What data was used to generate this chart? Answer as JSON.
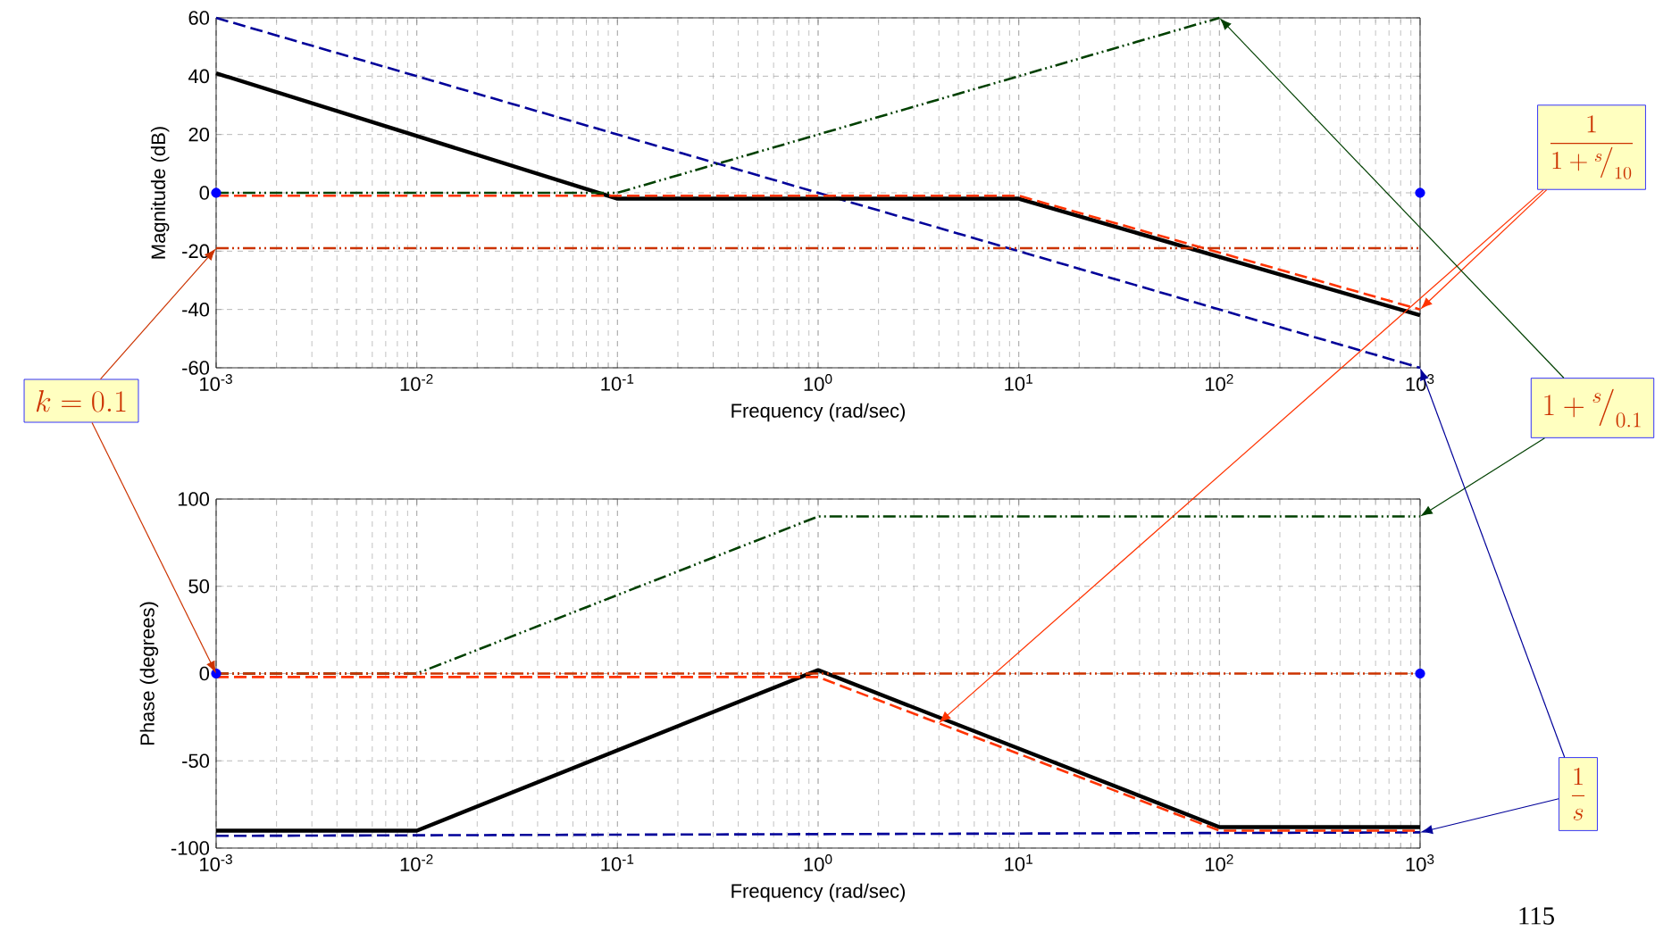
{
  "chart_data": [
    {
      "type": "line",
      "log": "x",
      "grid": true,
      "xlabel": "Frequency (rad/sec)",
      "ylabel": "Magnitude (dB)",
      "xlim": [
        0.001,
        1000
      ],
      "ylim": [
        -60,
        60
      ],
      "xticks": [
        {
          "value": 0.001,
          "label": "10$^{-3}$"
        },
        {
          "value": 0.01,
          "label": "10$^{-2}$"
        },
        {
          "value": 0.1,
          "label": "10$^{-1}$"
        },
        {
          "value": 1,
          "label": "10$^{0}$"
        },
        {
          "value": 10,
          "label": "10$^{1}$"
        },
        {
          "value": 100,
          "label": "10$^{2}$"
        },
        {
          "value": 1000,
          "label": "10$^{3}$"
        }
      ],
      "yticks": [
        -60,
        -40,
        -20,
        0,
        20,
        40,
        60
      ],
      "series": [
        {
          "color": "#000099",
          "line_style": "dashed",
          "x": [
            0.001,
            1000
          ],
          "values": [
            60,
            -60
          ]
        },
        {
          "color": "#000000",
          "line_style": "solid",
          "x": [
            0.001,
            0.1,
            10,
            1000
          ],
          "values": [
            41,
            -2,
            -2,
            -42
          ]
        },
        {
          "color": "#ff3300",
          "line_style": "dashed",
          "x": [
            0.001,
            10,
            1000
          ],
          "values": [
            -1,
            -1,
            -40
          ]
        },
        {
          "color": "#004000",
          "line_style": "dashdot",
          "x": [
            0.001,
            0.1,
            100
          ],
          "values": [
            0,
            0,
            60
          ]
        },
        {
          "color": "#cc3300",
          "line_style": "dashdot",
          "x": [
            0.001,
            1000
          ],
          "values": [
            -19,
            -19
          ]
        },
        {
          "type": "scatter",
          "color": "#0000ff",
          "x": [
            0.001,
            1000
          ],
          "values": [
            0,
            0
          ]
        }
      ],
      "annotations": [
        "k=0.1",
        "\\dfrac{1}{1+{}^{s}\\!\\big/_{10}}",
        "1+{}^{s}\\!\\big/_{0.1}",
        "\\dfrac{1}{s}"
      ]
    },
    {
      "type": "line",
      "log": "x",
      "grid": true,
      "xlabel": "Frequency (rad/sec)",
      "ylabel": "Phase (degrees)",
      "xlim": [
        0.001,
        1000
      ],
      "ylim": [
        -100,
        100
      ],
      "xticks": [
        {
          "value": 0.001,
          "label": "10$^{-3}$"
        },
        {
          "value": 0.01,
          "label": "10$^{-2}$"
        },
        {
          "value": 0.1,
          "label": "10$^{-1}$"
        },
        {
          "value": 1,
          "label": "10$^{0}$"
        },
        {
          "value": 10,
          "label": "10$^{1}$"
        },
        {
          "value": 100,
          "label": "10$^{2}$"
        },
        {
          "value": 1000,
          "label": "10$^{3}$"
        }
      ],
      "yticks": [
        -100,
        -50,
        0,
        50,
        100
      ],
      "series": [
        {
          "color": "#000099",
          "line_style": "dashed",
          "x": [
            0.001,
            1000
          ],
          "values": [
            -93,
            -91
          ]
        },
        {
          "color": "#000000",
          "line_style": "solid",
          "x": [
            0.001,
            0.01,
            1,
            100,
            1000
          ],
          "values": [
            -90,
            -90,
            2,
            -88,
            -88
          ]
        },
        {
          "color": "#ff3300",
          "line_style": "dashed",
          "x": [
            0.001,
            1,
            100,
            1000
          ],
          "values": [
            -2,
            -2,
            -90,
            -90
          ]
        },
        {
          "color": "#004000",
          "line_style": "dashdot",
          "x": [
            0.001,
            0.01,
            1,
            1000
          ],
          "values": [
            0,
            0,
            90,
            90
          ]
        },
        {
          "color": "#cc3300",
          "line_style": "dashdot",
          "x": [
            0.001,
            1000
          ],
          "values": [
            0,
            0
          ]
        },
        {
          "type": "scatter",
          "color": "#0000ff",
          "x": [
            0.001,
            1000
          ],
          "values": [
            0,
            0
          ]
        }
      ],
      "annotations": [
        "115"
      ]
    }
  ]
}
